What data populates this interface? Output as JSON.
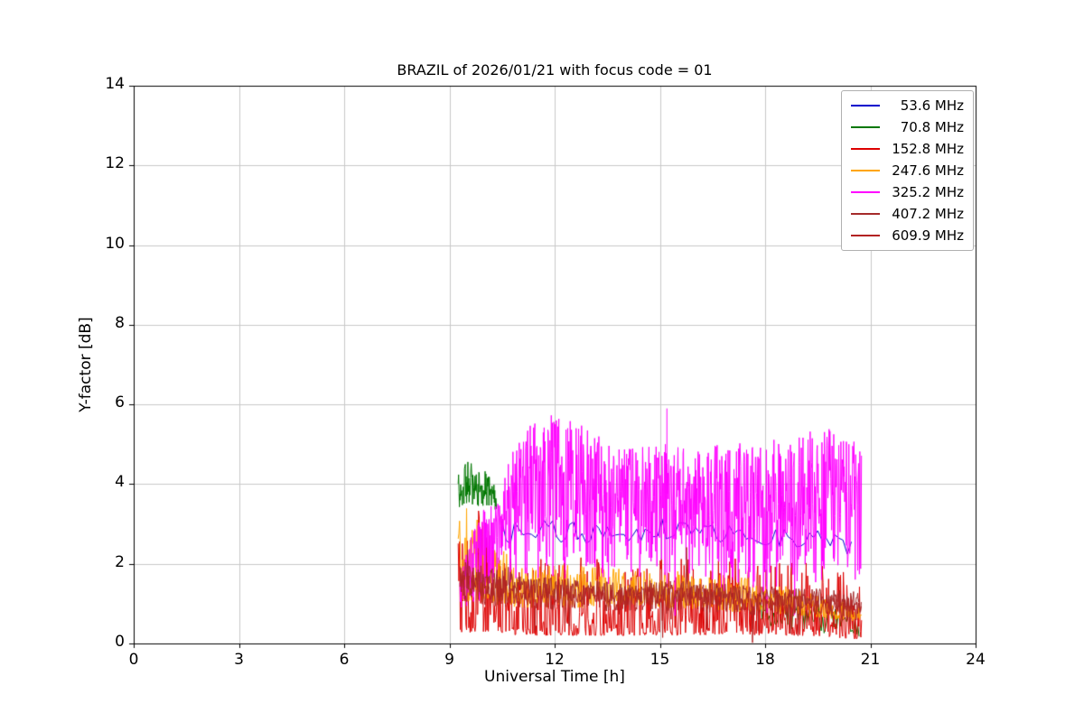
{
  "chart_data": {
    "type": "line",
    "title": "BRAZIL of 2026/01/21 with focus code = 01",
    "xlabel": "Universal Time [h]",
    "ylabel": "Y-factor [dB]",
    "xlim": [
      0,
      24
    ],
    "ylim": [
      0,
      14
    ],
    "xticks": [
      0,
      3,
      6,
      9,
      12,
      15,
      18,
      21,
      24
    ],
    "yticks": [
      0,
      2,
      4,
      6,
      8,
      10,
      12,
      14
    ],
    "grid": true,
    "grid_color": "#c9c9c9",
    "legend_position": "upper right",
    "series": [
      {
        "name": "53.6 MHz",
        "color": "#0000cc",
        "envelope_segments": [
          {
            "x": [
              10.5,
              12,
              13.5,
              15,
              16.5,
              18,
              19.5,
              20.5
            ],
            "top": [
              3.1,
              3.1,
              3.0,
              3.2,
              3.1,
              3.0,
              2.9,
              2.7
            ],
            "bottom": [
              2.5,
              2.5,
              2.5,
              2.6,
              2.5,
              2.4,
              2.4,
              2.2
            ],
            "density": "low",
            "bias": 1
          }
        ]
      },
      {
        "name": "70.8 MHz",
        "color": "#007700",
        "envelope_segments": [
          {
            "x": [
              9.25,
              9.45,
              9.7,
              10.0,
              10.2,
              10.35
            ],
            "top": [
              4.35,
              4.6,
              4.5,
              4.35,
              4.2,
              3.9
            ],
            "bottom": [
              3.3,
              3.4,
              3.45,
              3.4,
              3.3,
              3.15
            ],
            "density": "veryhigh",
            "bias": 0.8
          },
          {
            "x": [
              17.8,
              18.5,
              19.2,
              19.8,
              20.3,
              20.7
            ],
            "top": [
              1.25,
              1.15,
              1.05,
              0.95,
              0.85,
              0.75
            ],
            "bottom": [
              0.45,
              0.4,
              0.3,
              0.25,
              0.2,
              0.1
            ],
            "density": "normal",
            "bias": 1
          }
        ]
      },
      {
        "name": "152.8 MHz",
        "color": "#dd0000",
        "envelope_segments": [
          {
            "x": [
              9.25,
              9.6,
              10.0,
              10.3,
              10.6,
              11,
              12,
              13,
              14,
              15,
              16,
              17,
              18,
              19,
              20,
              20.75
            ],
            "top": [
              2.6,
              3.0,
              3.9,
              3.3,
              2.6,
              2.2,
              2.1,
              2.2,
              2.1,
              2.2,
              2.1,
              2.2,
              2.3,
              2.1,
              1.9,
              1.7
            ],
            "bottom": [
              0.3,
              0.25,
              0.3,
              0.3,
              0.25,
              0.2,
              0.2,
              0.2,
              0.2,
              0.2,
              0.2,
              0.25,
              0.2,
              0.2,
              0.15,
              0.1
            ],
            "density": "high",
            "bias": 2.2
          }
        ]
      },
      {
        "name": "247.6 MHz",
        "color": "#ffa500",
        "envelope_segments": [
          {
            "x": [
              9.25,
              9.5,
              9.8,
              10.1,
              10.5,
              11,
              12,
              13,
              14,
              15,
              16,
              17,
              18,
              19,
              20,
              20.75
            ],
            "top": [
              3.6,
              3.5,
              3.3,
              3.0,
              2.5,
              2.1,
              2.0,
              1.95,
              1.9,
              1.9,
              1.8,
              1.7,
              1.6,
              1.35,
              1.1,
              1.0
            ],
            "bottom": [
              1.05,
              1.05,
              1.0,
              1.0,
              0.95,
              0.9,
              0.9,
              0.9,
              0.9,
              0.9,
              0.85,
              0.8,
              0.75,
              0.7,
              0.6,
              0.55
            ],
            "density": "high",
            "bias": 1.4
          }
        ]
      },
      {
        "name": "325.2 MHz",
        "color": "#ff00ff",
        "envelope_segments": [
          {
            "x": [
              9.3,
              9.5,
              9.8,
              10.0,
              10.3,
              10.5,
              10.8,
              11.0,
              11.3,
              11.6,
              11.9,
              12.1,
              12.4,
              12.7,
              13.0,
              13.3,
              13.6,
              14.0,
              14.3,
              14.6,
              15.0,
              15.15,
              15.25,
              15.4,
              15.8,
              16.2,
              16.6,
              17.0,
              17.4,
              17.8,
              18.2,
              18.6,
              19.0,
              19.4,
              19.8,
              20.2,
              20.5,
              20.75
            ],
            "top": [
              1.6,
              2.4,
              3.1,
              3.4,
              3.6,
              4.2,
              5.0,
              5.2,
              5.5,
              5.6,
              5.75,
              5.8,
              5.6,
              5.5,
              5.4,
              5.2,
              5.0,
              4.9,
              5.0,
              5.0,
              5.05,
              5.1,
              5.05,
              5.0,
              4.9,
              4.8,
              5.0,
              5.0,
              5.1,
              4.9,
              5.1,
              5.2,
              5.3,
              5.35,
              5.4,
              5.2,
              5.1,
              5.0
            ],
            "bottom": [
              0.8,
              0.9,
              0.95,
              1.0,
              1.0,
              1.1,
              1.2,
              1.2,
              1.3,
              1.4,
              1.5,
              1.5,
              1.5,
              1.45,
              1.4,
              1.4,
              1.35,
              1.3,
              1.35,
              1.4,
              1.4,
              1.4,
              1.4,
              1.35,
              1.3,
              1.3,
              1.3,
              1.3,
              1.3,
              1.25,
              1.3,
              1.35,
              1.4,
              1.45,
              1.5,
              1.5,
              1.5,
              1.5
            ],
            "density": "veryhigh",
            "bias": 0.7,
            "down_prob": 0.004,
            "down_max": 1.0
          }
        ],
        "spikes": [
          {
            "x": 15.2,
            "y": 5.9
          }
        ]
      },
      {
        "name": "407.2 MHz",
        "color": "#a52a2a",
        "envelope_segments": [
          {
            "x": [
              9.3,
              10,
              11,
              12,
              13,
              14,
              15,
              16,
              17,
              18,
              19,
              20,
              20.75
            ],
            "top": [
              2.1,
              1.95,
              1.75,
              1.65,
              1.6,
              1.55,
              1.6,
              1.55,
              1.5,
              1.45,
              1.4,
              1.35,
              1.3
            ],
            "bottom": [
              1.3,
              1.2,
              1.1,
              1.05,
              1.0,
              1.0,
              1.0,
              1.0,
              0.95,
              0.9,
              0.85,
              0.8,
              0.7
            ],
            "density": "high",
            "bias": 1,
            "down_prob": 0.012,
            "down_max": 0.7,
            "up_prob": 0.008,
            "up_max": 0.9
          }
        ]
      },
      {
        "name": "609.9 MHz",
        "color": "#b22222",
        "envelope_segments": [
          {
            "x": [
              9.3,
              10,
              11,
              12,
              13,
              14,
              15,
              16,
              17,
              18,
              19,
              20,
              20.75
            ],
            "top": [
              1.95,
              1.8,
              1.6,
              1.5,
              1.45,
              1.4,
              1.45,
              1.4,
              1.35,
              1.3,
              1.25,
              1.2,
              1.1
            ],
            "bottom": [
              1.0,
              0.95,
              0.9,
              0.85,
              0.8,
              0.8,
              0.8,
              0.8,
              0.75,
              0.7,
              0.65,
              0.6,
              0.5
            ],
            "density": "high",
            "bias": 1,
            "down_prob": 0.015,
            "down_max": 0.8,
            "up_prob": 0.005,
            "up_max": 0.6
          }
        ]
      }
    ]
  }
}
